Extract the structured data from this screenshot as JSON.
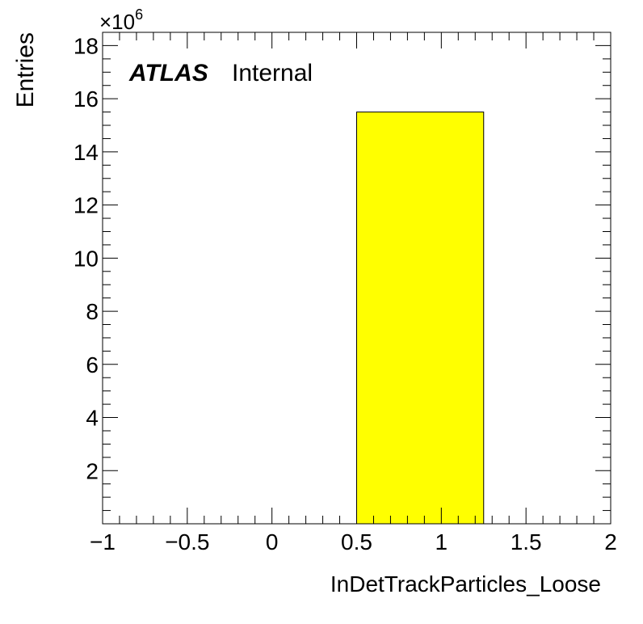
{
  "chart_data": {
    "type": "bar",
    "title": "",
    "xlabel": "InDetTrackParticles_Loose",
    "ylabel": "Entries",
    "y_multiplier": "×10",
    "y_multiplier_exp": "6",
    "xlim": [
      -1,
      2
    ],
    "ylim": [
      0,
      18.5
    ],
    "y_scale_factor": 1000000,
    "x_ticks": [
      -1,
      -0.5,
      0,
      0.5,
      1,
      1.5,
      2
    ],
    "x_tick_labels": [
      "−1",
      "−0.5",
      "0",
      "0.5",
      "1",
      "1.5",
      "2"
    ],
    "y_ticks": [
      2,
      4,
      6,
      8,
      10,
      12,
      14,
      16,
      18
    ],
    "y_tick_labels": [
      "2",
      "4",
      "6",
      "8",
      "10",
      "12",
      "14",
      "16",
      "18"
    ],
    "grid": false,
    "bars": [
      {
        "x_low": 0.5,
        "x_high": 1.25,
        "value": 15.5
      }
    ],
    "colors": {
      "bar_fill": "#ffff00",
      "bar_edge": "#000000"
    }
  },
  "annotation": {
    "experiment": "ATLAS",
    "status": "Internal"
  }
}
